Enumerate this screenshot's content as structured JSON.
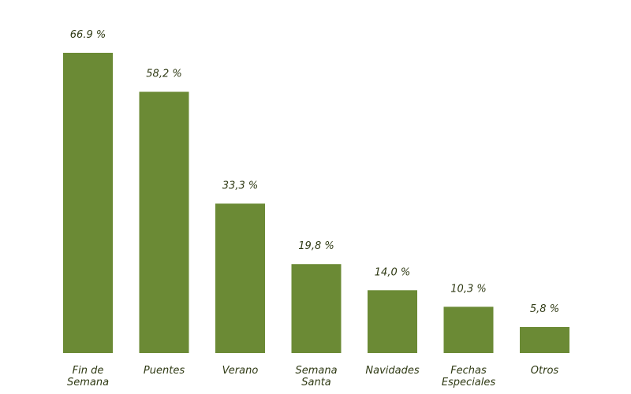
{
  "chart_data": {
    "type": "bar",
    "categories": [
      [
        "Fin de",
        "Semana"
      ],
      [
        "Puentes"
      ],
      [
        "Verano"
      ],
      [
        "Semana",
        "Santa"
      ],
      [
        "Navidades"
      ],
      [
        "Fechas",
        "Especiales"
      ],
      [
        "Otros"
      ]
    ],
    "values": [
      66.9,
      58.2,
      33.3,
      19.8,
      14.0,
      10.3,
      5.8
    ],
    "data_labels": [
      "66.9 %",
      "58,2 %",
      "33,3 %",
      "19,8 %",
      "14,0 %",
      "10,3 %",
      "5,8 %"
    ],
    "bar_color": "#6b8a35",
    "text_color": "#2f3a14",
    "grid": false,
    "legend": "none"
  }
}
